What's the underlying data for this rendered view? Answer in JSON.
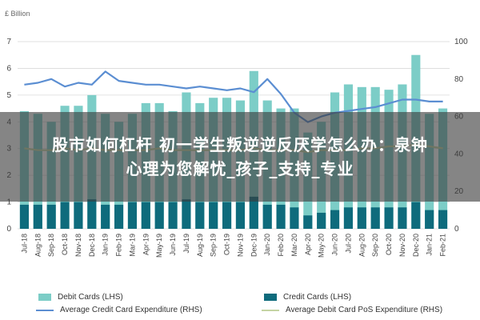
{
  "overlay": {
    "line1": "股市如何杠杆 初一学生叛逆逆反厌学怎么办：泉钟",
    "line2": "心理为您解忧_孩子_支持_专业"
  },
  "colors": {
    "debit": "#7ccdc7",
    "credit": "#0e6b7c",
    "avg_credit": "#5b8ed2",
    "avg_debit": "#c5d4a3"
  },
  "chart_data": {
    "type": "bar",
    "y_left_label": "£ Billion",
    "categories": [
      "Jul-18",
      "Aug-18",
      "Sep-18",
      "Oct-18",
      "Nov-18",
      "Dec-18",
      "Jan-19",
      "Feb-19",
      "Mar-19",
      "Apr-19",
      "May-19",
      "Jun-19",
      "Jul-19",
      "Aug-19",
      "Sep-19",
      "Oct-19",
      "Nov-19",
      "Dec-19",
      "Jan-20",
      "Feb-20",
      "Mar-20",
      "Apr-20",
      "May-20",
      "Jun-20",
      "Jul-20",
      "Aug-20",
      "Sep-20",
      "Oct-20",
      "Nov-20",
      "Dec-20",
      "Jan-21",
      "Feb-21"
    ],
    "ylim_left": [
      0,
      7
    ],
    "ylim_right": [
      0,
      100
    ],
    "left_ticks": [
      0,
      1,
      2,
      3,
      4,
      5,
      6,
      7
    ],
    "right_ticks": [
      0,
      20,
      40,
      60,
      80,
      100
    ],
    "grid": true,
    "series": [
      {
        "name": "Debit Cards (LHS)",
        "kind": "bar",
        "axis": "left",
        "values": [
          4.4,
          4.3,
          4.0,
          4.6,
          4.6,
          5.0,
          4.3,
          4.0,
          4.3,
          4.7,
          4.7,
          4.4,
          5.1,
          4.7,
          4.9,
          4.9,
          4.8,
          5.9,
          4.8,
          4.5,
          4.5,
          3.6,
          4.0,
          5.1,
          5.4,
          5.3,
          5.3,
          5.2,
          5.4,
          6.5,
          4.3,
          4.5
        ]
      },
      {
        "name": "Credit Cards (LHS)",
        "kind": "bar",
        "axis": "left",
        "values": [
          0.9,
          0.9,
          0.9,
          1.0,
          1.0,
          1.1,
          0.9,
          0.9,
          1.0,
          1.0,
          1.0,
          1.0,
          1.1,
          1.0,
          1.0,
          1.0,
          1.0,
          1.2,
          0.9,
          0.9,
          0.8,
          0.5,
          0.6,
          0.7,
          0.8,
          0.8,
          0.8,
          0.8,
          0.8,
          1.0,
          0.7,
          0.7
        ]
      },
      {
        "name": "Average Credit Card Expenditure (RHS)",
        "kind": "line",
        "axis": "right",
        "values": [
          77,
          78,
          80,
          76,
          78,
          77,
          84,
          79,
          78,
          77,
          77,
          76,
          75,
          76,
          75,
          74,
          75,
          73,
          80,
          72,
          62,
          57,
          60,
          62,
          63,
          64,
          65,
          67,
          69,
          69,
          68,
          68
        ]
      },
      {
        "name": "Average Debit Card PoS Expenditure (RHS)",
        "kind": "line",
        "axis": "right",
        "values": [
          43,
          42,
          42,
          43,
          42,
          43,
          42,
          42,
          42,
          42,
          43,
          42,
          42,
          42,
          42,
          42,
          42,
          43,
          42,
          42,
          42,
          41,
          42,
          42,
          42,
          43,
          43,
          44,
          44,
          45,
          44,
          43
        ]
      }
    ]
  }
}
